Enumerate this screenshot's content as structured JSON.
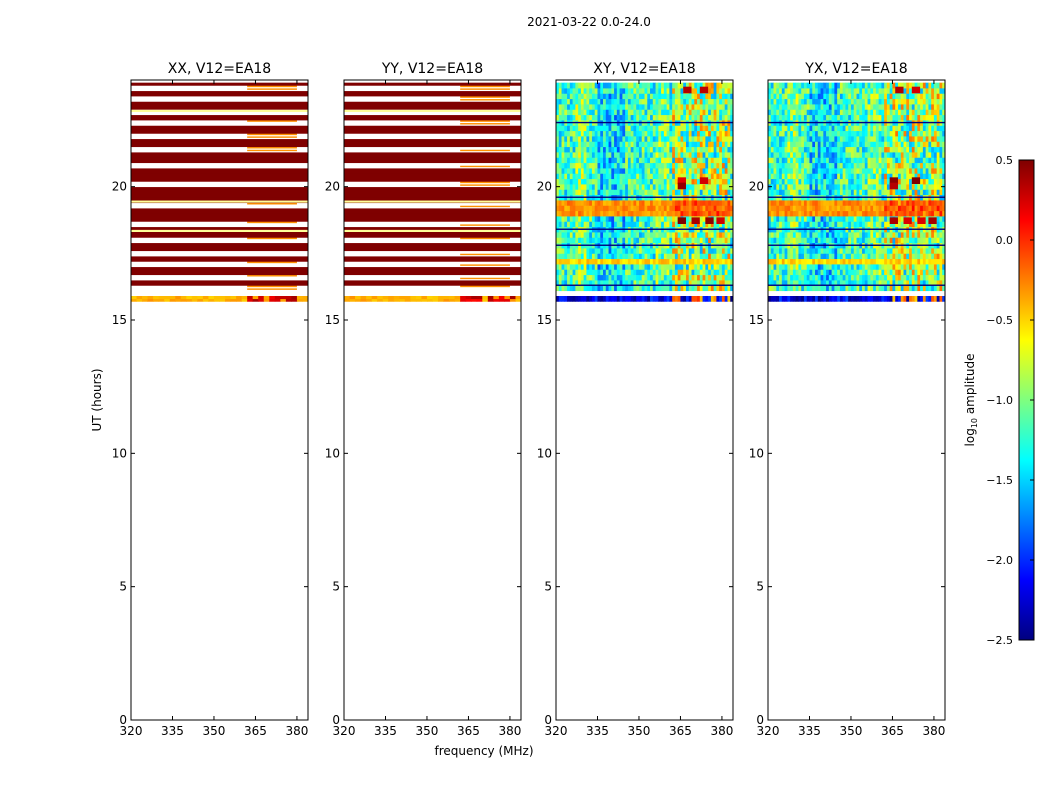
{
  "figure": {
    "suptitle": "2021-03-22 0.0-24.0",
    "shared_xlabel": "frequency (MHz)",
    "shared_ylabel": "UT (hours)"
  },
  "colorbar": {
    "label_prefix": "log",
    "label_sub": "10",
    "label_suffix": " amplitude",
    "range": [
      -2.5,
      0.5
    ],
    "ticks": [
      0.5,
      0.0,
      -0.5,
      -1.0,
      -1.5,
      -2.0,
      -2.5
    ],
    "tick_labels": [
      "0.5",
      "0.0",
      "−0.5",
      "−1.0",
      "−1.5",
      "−2.0",
      "−2.5"
    ],
    "colormap": "jet",
    "jet_stops": [
      "#00007f",
      "#0000ff",
      "#007fff",
      "#00ffff",
      "#7fff7f",
      "#ffff00",
      "#ff7f00",
      "#ff0000",
      "#7f0000"
    ]
  },
  "chart_data": [
    {
      "type": "heatmap",
      "title": "XX, V12=EA18",
      "xlim": [
        320,
        384
      ],
      "ylim": [
        0,
        24
      ],
      "xticks": [
        320,
        335,
        350,
        365,
        380
      ],
      "yticks": [
        0,
        5,
        10,
        15,
        20
      ],
      "data_ut_range": [
        15.7,
        23.9
      ],
      "dominant_log10_amplitude": 0.5,
      "low_strip": {
        "ut_range": [
          15.7,
          15.9
        ],
        "log10_amplitude": -0.4,
        "bright_freq_range": [
          362,
          380
        ]
      },
      "gap_hours": [
        16.2,
        16.6,
        17.1,
        17.5,
        18.0,
        18.6,
        19.3,
        20.1,
        20.8,
        21.4,
        21.9,
        22.4,
        22.8,
        23.3,
        23.7
      ]
    },
    {
      "type": "heatmap",
      "title": "YY, V12=EA18",
      "xlim": [
        320,
        384
      ],
      "ylim": [
        0,
        24
      ],
      "xticks": [
        320,
        335,
        350,
        365,
        380
      ],
      "yticks": [
        0,
        5,
        10,
        15,
        20
      ],
      "data_ut_range": [
        15.7,
        23.9
      ],
      "dominant_log10_amplitude": 0.5,
      "low_strip": {
        "ut_range": [
          15.7,
          15.9
        ],
        "log10_amplitude": -0.4,
        "bright_freq_range": [
          362,
          380
        ]
      },
      "gap_hours": [
        16.2,
        16.6,
        17.1,
        17.5,
        18.0,
        18.6,
        19.3,
        20.1,
        20.8,
        21.4,
        21.9,
        22.4,
        22.8,
        23.3,
        23.7
      ]
    },
    {
      "type": "heatmap",
      "title": "XY, V12=EA18",
      "xlim": [
        320,
        384
      ],
      "ylim": [
        0,
        24
      ],
      "xticks": [
        320,
        335,
        350,
        365,
        380
      ],
      "yticks": [
        0,
        5,
        10,
        15,
        20
      ],
      "data_ut_range": [
        15.7,
        23.9
      ],
      "background_log10_amplitude": -1.2,
      "bright_band": {
        "ut_range": [
          18.9,
          19.5
        ],
        "log10_amplitude": -0.3
      },
      "rfi_freq_range": [
        362,
        382
      ],
      "low_strip": {
        "ut_range": [
          15.7,
          15.9
        ],
        "log10_amplitude": -2.2
      },
      "gap_hours": [
        16.3,
        17.2,
        18.1,
        20.3,
        21.5,
        22.5,
        23.1
      ]
    },
    {
      "type": "heatmap",
      "title": "YX, V12=EA18",
      "xlim": [
        320,
        384
      ],
      "ylim": [
        0,
        24
      ],
      "xticks": [
        320,
        335,
        350,
        365,
        380
      ],
      "yticks": [
        0,
        5,
        10,
        15,
        20
      ],
      "data_ut_range": [
        15.7,
        23.9
      ],
      "background_log10_amplitude": -1.2,
      "bright_band": {
        "ut_range": [
          18.9,
          19.5
        ],
        "log10_amplitude": -0.3
      },
      "rfi_freq_range": [
        362,
        382
      ],
      "low_strip": {
        "ut_range": [
          15.7,
          15.9
        ],
        "log10_amplitude": -2.2
      },
      "gap_hours": [
        16.3,
        17.2,
        18.1,
        20.3,
        21.5,
        22.5,
        23.1
      ]
    }
  ]
}
